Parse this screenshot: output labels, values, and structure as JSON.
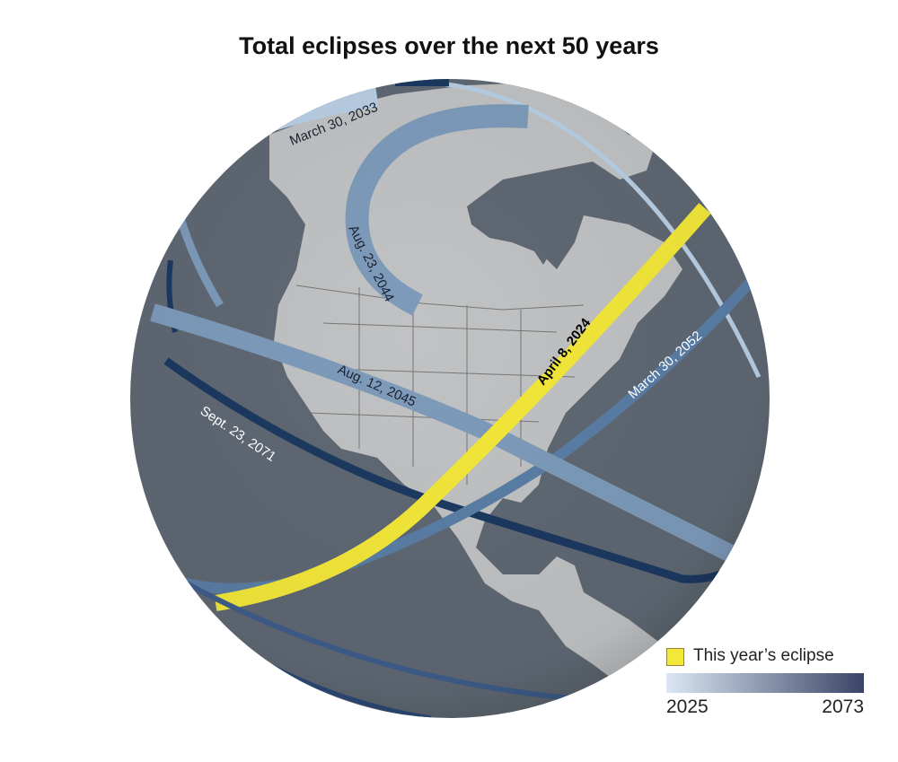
{
  "title": "Total eclipses over the next 50 years",
  "paths": [
    {
      "label": "April 8, 2024",
      "color": "#f4e83a"
    },
    {
      "label": "March 30, 2033",
      "color": "#b9cfe5"
    },
    {
      "label": "Aug. 23, 2044",
      "color": "#7e9bbb"
    },
    {
      "label": "Aug. 12, 2045",
      "color": "#7e9bbb"
    },
    {
      "label": "March 30, 2052",
      "color": "#5a7ea6"
    },
    {
      "label": "Sept. 23, 2071",
      "color": "#1c3961"
    }
  ],
  "legend": {
    "highlight_label": "This year’s eclipse",
    "highlight_color": "#f4e83a",
    "scale_min": "2025",
    "scale_max": "2073",
    "scale_min_color": "#dbe7f4",
    "scale_max_color": "#3a4566"
  },
  "colors": {
    "ocean": "#5f6873",
    "land": "#c0c2c4"
  }
}
